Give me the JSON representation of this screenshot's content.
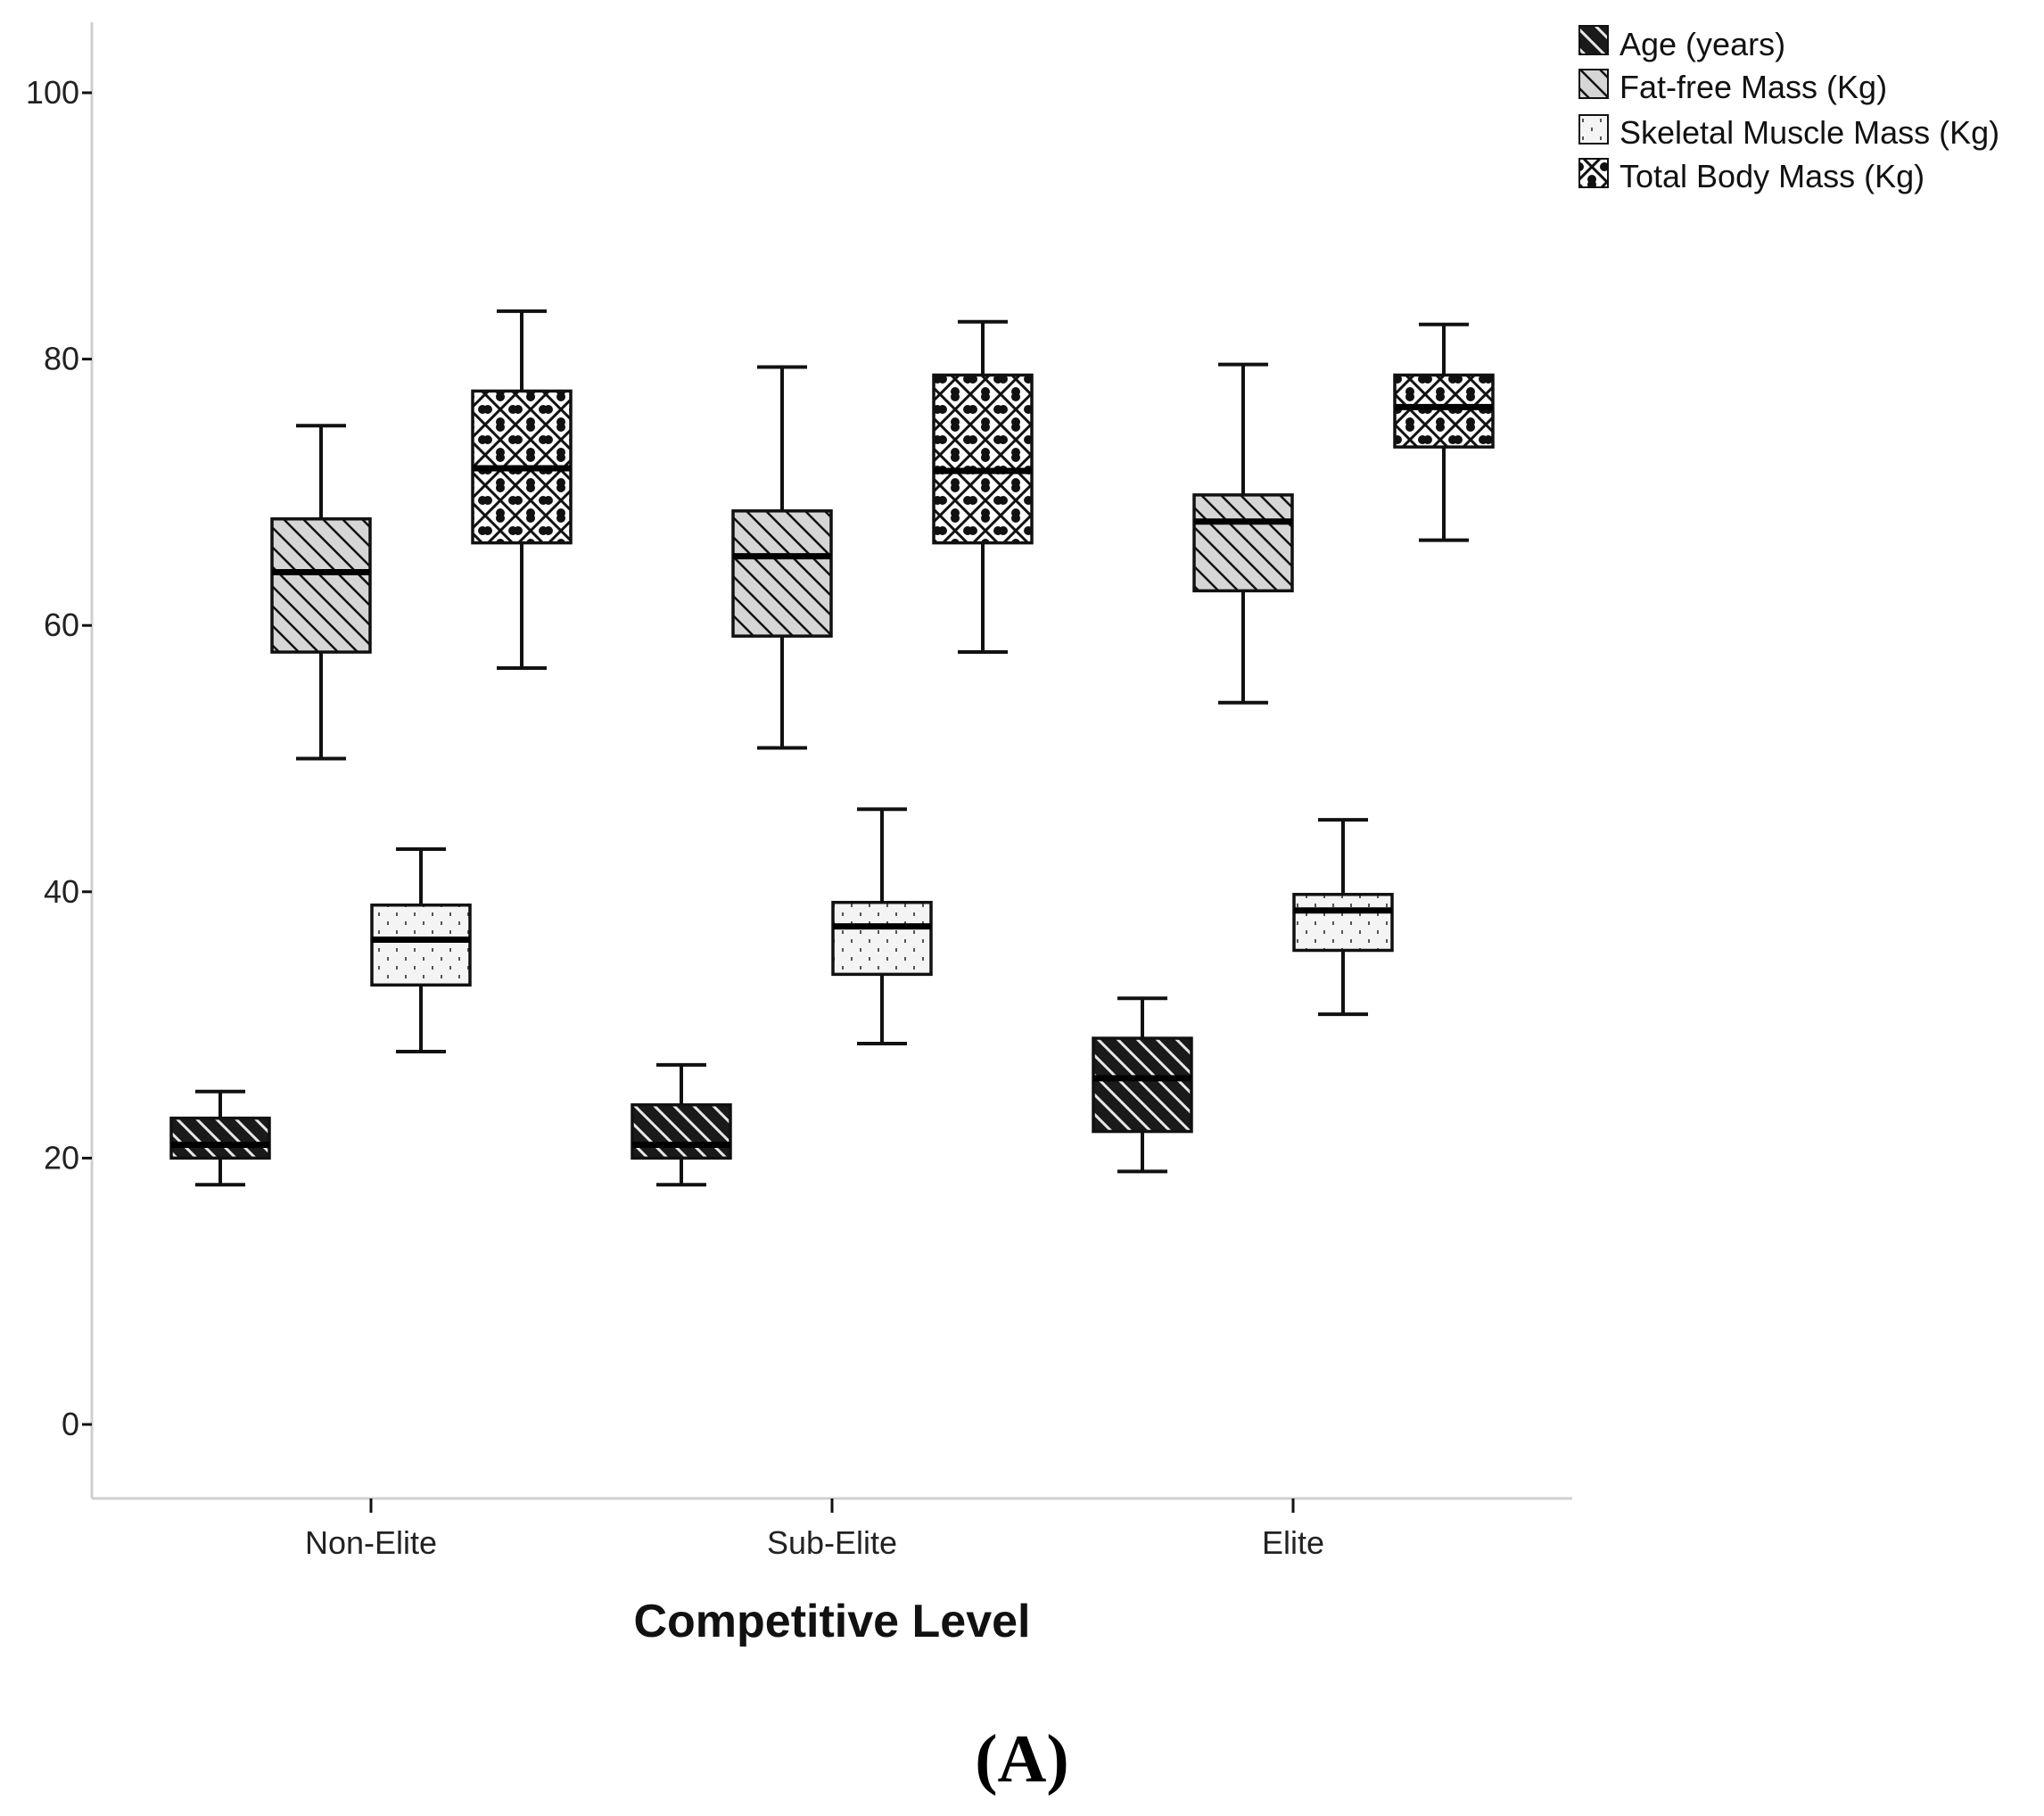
{
  "chart_data": {
    "type": "boxplot",
    "title": "",
    "xlabel": "Competitive Level",
    "ylabel": "",
    "panel_label": "(A)",
    "ylim": [
      -5,
      105
    ],
    "yticks": [
      0,
      20,
      40,
      60,
      80,
      100
    ],
    "ytick_labels": [
      "0",
      "20",
      "40",
      "60",
      "80",
      "100"
    ],
    "categories": [
      "Non-Elite",
      "Sub-Elite",
      "Elite"
    ],
    "legend_position": "top-right",
    "series": [
      {
        "name": "Age (years)",
        "pattern": "hatch-dense-dark",
        "boxes": [
          {
            "min": 18,
            "q1": 20,
            "median": 21,
            "q3": 23,
            "max": 25
          },
          {
            "min": 18,
            "q1": 20,
            "median": 21,
            "q3": 24,
            "max": 27
          },
          {
            "min": 19,
            "q1": 22,
            "median": 26,
            "q3": 29,
            "max": 32
          }
        ]
      },
      {
        "name": "Fat-free Mass (Kg)",
        "pattern": "hatch-light",
        "boxes": [
          {
            "min": 50,
            "q1": 58,
            "median": 64,
            "q3": 68,
            "max": 75
          },
          {
            "min": 50.8,
            "q1": 59.2,
            "median": 65.2,
            "q3": 68.6,
            "max": 79.4
          },
          {
            "min": 54.2,
            "q1": 62.6,
            "median": 67.8,
            "q3": 69.8,
            "max": 79.6
          }
        ]
      },
      {
        "name": "Skeletal Muscle Mass (Kg)",
        "pattern": "dots",
        "boxes": [
          {
            "min": 28,
            "q1": 33,
            "median": 36.4,
            "q3": 39,
            "max": 43.2
          },
          {
            "min": 28.6,
            "q1": 33.8,
            "median": 37.4,
            "q3": 39.2,
            "max": 46.2
          },
          {
            "min": 30.8,
            "q1": 35.6,
            "median": 38.6,
            "q3": 39.8,
            "max": 45.4
          }
        ]
      },
      {
        "name": "Total Body Mass (Kg)",
        "pattern": "crosshatch",
        "boxes": [
          {
            "min": 56.8,
            "q1": 66.2,
            "median": 71.8,
            "q3": 77.6,
            "max": 83.6
          },
          {
            "min": 58,
            "q1": 66.2,
            "median": 71.6,
            "q3": 78.8,
            "max": 82.8
          },
          {
            "min": 66.4,
            "q1": 73.4,
            "median": 76.4,
            "q3": 78.8,
            "max": 82.6
          }
        ]
      }
    ]
  }
}
